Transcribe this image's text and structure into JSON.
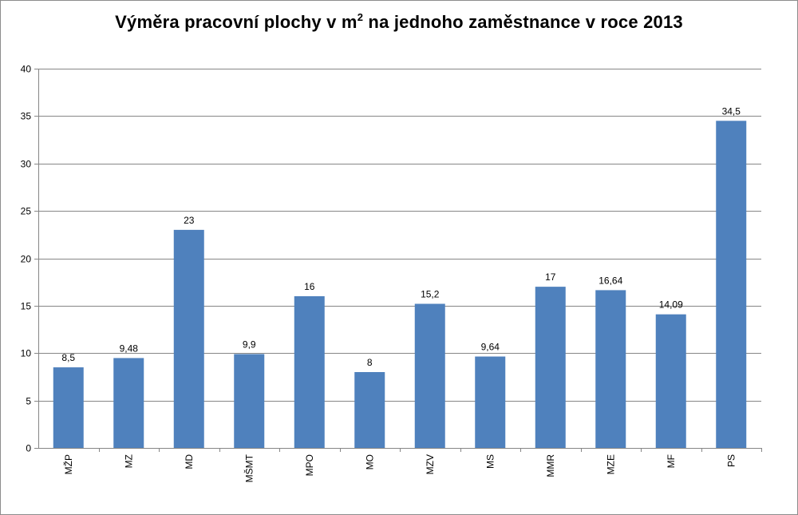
{
  "chart_data": {
    "type": "bar",
    "title_main": "Výměra pracovní plochy v m",
    "title_sup": "2",
    "title_rest": " na jednoho zaměstnance v roce 2013",
    "categories": [
      "MŽP",
      "MZ",
      "MD",
      "MŠMT",
      "MPO",
      "MO",
      "MZV",
      "MS",
      "MMR",
      "MZE",
      "MF",
      "PS"
    ],
    "values": [
      8.5,
      9.48,
      23,
      9.9,
      16,
      8,
      15.2,
      9.64,
      17,
      16.64,
      14.09,
      34.5
    ],
    "data_labels": [
      "8,5",
      "9,48",
      "23",
      "9,9",
      "16",
      "8",
      "15,2",
      "9,64",
      "17",
      "16,64",
      "14,09",
      "34,5"
    ],
    "ylim": [
      0,
      40
    ],
    "yticks": [
      0,
      5,
      10,
      15,
      20,
      25,
      30,
      35,
      40
    ],
    "grid": true,
    "legend": "none",
    "bar_color": "#4f81bd",
    "grid_color": "#868686"
  }
}
